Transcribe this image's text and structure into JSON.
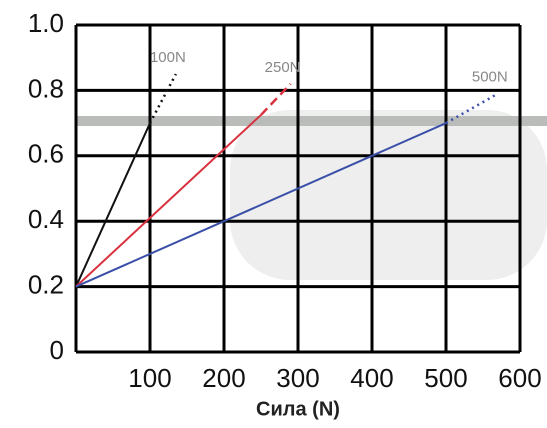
{
  "chart_data": {
    "type": "line",
    "x_label": "Сила (N)",
    "xlim": [
      0,
      600
    ],
    "xticks": [
      100,
      200,
      300,
      400,
      500,
      600
    ],
    "ylim": [
      0,
      1
    ],
    "yticks": [
      0,
      0.2,
      0.4,
      0.6,
      0.8,
      {
        "value": 1,
        "label": "1.0"
      }
    ],
    "grid": true,
    "series": [
      {
        "name": "100N",
        "color": "#111111",
        "x": [
          0,
          100
        ],
        "values": [
          0.2,
          0.7
        ],
        "extension": {
          "x": [
            100,
            135
          ],
          "values": [
            0.7,
            0.85
          ],
          "dash": "dotted"
        }
      },
      {
        "name": "250N",
        "color": "#d9323f",
        "x": [
          0,
          250
        ],
        "values": [
          0.2,
          0.725
        ],
        "extension": {
          "x": [
            250,
            290
          ],
          "values": [
            0.725,
            0.82
          ],
          "dash": "dashed"
        }
      },
      {
        "name": "500N",
        "color": "#3a4fa8",
        "x": [
          0,
          500
        ],
        "values": [
          0.2,
          0.7
        ],
        "extension": {
          "x": [
            500,
            570
          ],
          "values": [
            0.7,
            0.79
          ],
          "dash": "dotted"
        }
      }
    ]
  }
}
